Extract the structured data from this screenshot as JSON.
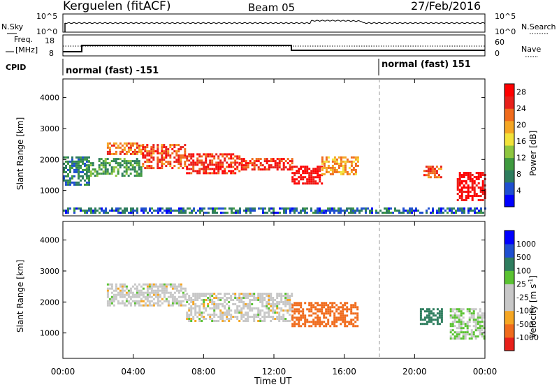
{
  "header": {
    "station": "Kerguelen (fitACF)",
    "beam": "Beam 05",
    "date": "27/Feb/2016"
  },
  "nsky_panel": {
    "left_label": "N.Sky",
    "right_label": "N.Search",
    "left_ticks": [
      "10^5",
      "10^0"
    ],
    "right_ticks": [
      "10^5",
      "10^0"
    ]
  },
  "freq_panel": {
    "left_label_1": "Freq.",
    "left_label_2": "[MHz]",
    "right_label": "Nave",
    "left_ticks": [
      "18",
      "8"
    ],
    "right_ticks": [
      "60",
      "0"
    ]
  },
  "cpid_panel": {
    "label": "CPID",
    "segments": [
      "normal (fast) -151",
      "normal (fast) 151"
    ]
  },
  "time_axis": {
    "xlabel": "Time UT",
    "ticks": [
      "00:00",
      "04:00",
      "08:00",
      "12:00",
      "16:00",
      "20:00",
      "00:00"
    ]
  },
  "colors": {
    "power_scale": [
      "#0000ff",
      "#1f4fd0",
      "#2e7d5e",
      "#3f9a3f",
      "#8ec63f",
      "#f2e23a",
      "#f5a623",
      "#f06b1c",
      "#e8201a",
      "#ff0000"
    ],
    "velocity_scale": [
      "#e8201a",
      "#f06b1c",
      "#f5a623",
      "#c8c8c8",
      "#c8c8c8",
      "#5ac232",
      "#2e7d5e",
      "#1f4fd0",
      "#0000ff"
    ]
  },
  "chart_data": [
    {
      "type": "heatmap",
      "title": "",
      "xlabel": "Time UT",
      "ylabel": "Slant Range [km]",
      "ylim": [
        180,
        4600
      ],
      "xlim_hours": [
        0,
        24
      ],
      "yticks": [
        "1000",
        "2000",
        "3000",
        "4000"
      ],
      "colorbar": {
        "label": "Power [dB]",
        "ticks": [
          "4",
          "8",
          "12",
          "16",
          "20",
          "24",
          "28"
        ],
        "range": [
          0,
          30
        ]
      },
      "regions": [
        {
          "t0": 0.0,
          "t1": 1.5,
          "r0": 1200,
          "r1": 2100,
          "value": 8
        },
        {
          "t0": 1.3,
          "t1": 4.5,
          "r0": 1450,
          "r1": 2050,
          "value": 10
        },
        {
          "t0": 2.5,
          "t1": 4.5,
          "r0": 2150,
          "r1": 2550,
          "value": 22
        },
        {
          "t0": 4.5,
          "t1": 7.0,
          "r0": 1700,
          "r1": 2500,
          "value": 24
        },
        {
          "t0": 7.0,
          "t1": 10.0,
          "r0": 1550,
          "r1": 2200,
          "value": 26
        },
        {
          "t0": 10.0,
          "t1": 13.0,
          "r0": 1650,
          "r1": 2050,
          "value": 26
        },
        {
          "t0": 13.0,
          "t1": 14.7,
          "r0": 1200,
          "r1": 1800,
          "value": 28
        },
        {
          "t0": 14.7,
          "t1": 16.8,
          "r0": 1500,
          "r1": 2100,
          "value": 20
        },
        {
          "t0": 20.5,
          "t1": 21.5,
          "r0": 1400,
          "r1": 1800,
          "value": 24
        },
        {
          "t0": 22.4,
          "t1": 24.0,
          "r0": 700,
          "r1": 1600,
          "value": 28
        },
        {
          "t0": 0.0,
          "t1": 24.0,
          "r0": 250,
          "r1": 450,
          "value": 6
        }
      ],
      "annotations": [
        {
          "at_hour": 18.0,
          "style": "dashed"
        }
      ]
    },
    {
      "type": "heatmap",
      "title": "",
      "xlabel": "Time UT",
      "ylabel": "Slant Range [km]",
      "ylim": [
        180,
        4600
      ],
      "xlim_hours": [
        0,
        24
      ],
      "yticks": [
        "1000",
        "2000",
        "3000",
        "4000"
      ],
      "colorbar": {
        "label": "Velocity [m s-1]",
        "ticks": [
          "1000",
          "500",
          "100",
          "25",
          "-25",
          "-100",
          "-500",
          "-1000"
        ]
      },
      "regions": [
        {
          "t0": 2.5,
          "t1": 7.0,
          "r0": 1900,
          "r1": 2600,
          "value": 0
        },
        {
          "t0": 7.0,
          "t1": 13.0,
          "r0": 1400,
          "r1": 2300,
          "value": 0
        },
        {
          "t0": 13.0,
          "t1": 16.8,
          "r0": 1200,
          "r1": 2000,
          "value": -200
        },
        {
          "t0": 20.3,
          "t1": 21.5,
          "r0": 1300,
          "r1": 1800,
          "value": 300
        },
        {
          "t0": 22.0,
          "t1": 24.0,
          "r0": 800,
          "r1": 1800,
          "value": 20
        }
      ],
      "annotations": [
        {
          "at_hour": 18.0,
          "style": "dashed"
        }
      ]
    }
  ]
}
